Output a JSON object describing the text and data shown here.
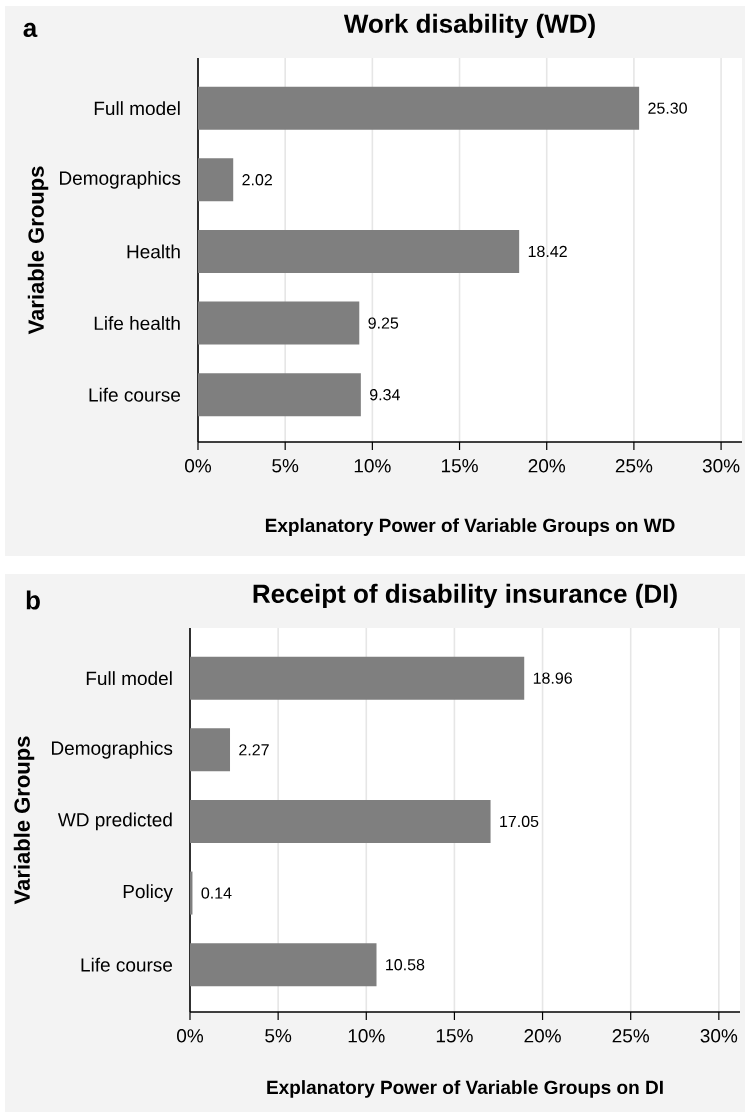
{
  "chart_data": [
    {
      "type": "bar",
      "orientation": "horizontal",
      "title": "Work disability (WD)",
      "xlabel": "Explanatory Power of Variable Groups on WD",
      "ylabel": "Variable Groups",
      "annotations": [
        "a"
      ],
      "categories": [
        "Full model",
        "Demographics",
        "Health",
        "Life health",
        "Life course"
      ],
      "values": [
        25.3,
        2.02,
        18.42,
        9.25,
        9.34
      ],
      "value_labels": [
        "25.30",
        "2.02",
        "18.42",
        "9.25",
        "9.34"
      ],
      "color": "#7f7f7f",
      "xlim": [
        0,
        31.2
      ],
      "xticks": [
        {
          "value": 0,
          "label": "0%"
        },
        {
          "value": 5,
          "label": "5%"
        },
        {
          "value": 10,
          "label": "10%"
        },
        {
          "value": 15,
          "label": "15%"
        },
        {
          "value": 20,
          "label": "20%"
        },
        {
          "value": 25,
          "label": "25%"
        },
        {
          "value": 30,
          "label": "30%"
        }
      ],
      "grid": "x"
    },
    {
      "type": "bar",
      "orientation": "horizontal",
      "title": "Receipt of disability insurance (DI)",
      "xlabel": "Explanatory Power of Variable Groups on DI",
      "ylabel": "Variable Groups",
      "annotations": [
        "b"
      ],
      "categories": [
        "Full model",
        "Demographics",
        "WD predicted",
        "Policy",
        "Life course"
      ],
      "values": [
        18.96,
        2.27,
        17.05,
        0.14,
        10.58
      ],
      "value_labels": [
        "18.96",
        "2.27",
        "17.05",
        "0.14",
        "10.58"
      ],
      "color": "#7f7f7f",
      "xlim": [
        0,
        31.2
      ],
      "xticks": [
        {
          "value": 0,
          "label": "0%"
        },
        {
          "value": 5,
          "label": "5%"
        },
        {
          "value": 10,
          "label": "10%"
        },
        {
          "value": 15,
          "label": "15%"
        },
        {
          "value": 20,
          "label": "20%"
        },
        {
          "value": 25,
          "label": "25%"
        },
        {
          "value": 30,
          "label": "30%"
        }
      ],
      "grid": "x"
    }
  ]
}
